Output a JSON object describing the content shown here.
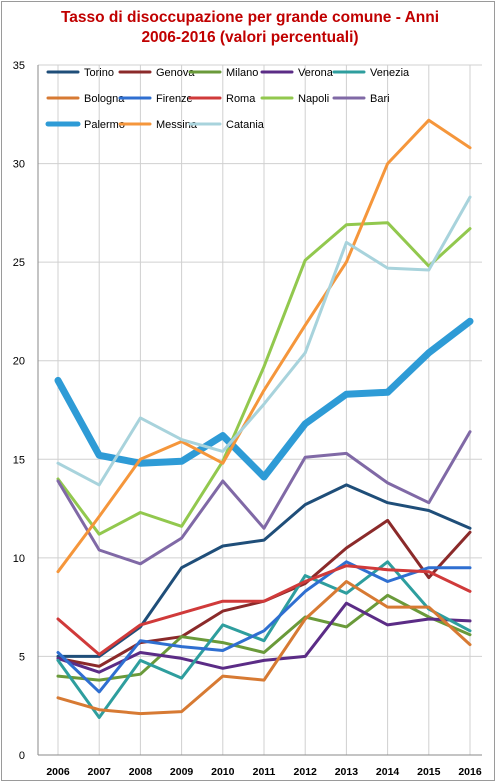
{
  "chart_data": {
    "type": "line",
    "title_line1": "Tasso di disoccupazione per grande comune - Anni",
    "title_line2": "2006-2016 (valori percentuali)",
    "x": [
      "2006",
      "2007",
      "2008",
      "2009",
      "2010",
      "2011",
      "2012",
      "2013",
      "2014",
      "2015",
      "2016"
    ],
    "ylim": [
      0,
      35
    ],
    "yticks": [
      0,
      5,
      10,
      15,
      20,
      25,
      30,
      35
    ],
    "grid": true,
    "legend_position": "top-left",
    "series": [
      {
        "name": "Torino",
        "color": "#1f4e79",
        "width": 3,
        "values": [
          5.0,
          5.0,
          6.5,
          9.5,
          10.6,
          10.9,
          12.7,
          13.7,
          12.8,
          12.4,
          11.5
        ]
      },
      {
        "name": "Genova",
        "color": "#8b2a2a",
        "width": 3,
        "values": [
          4.9,
          4.5,
          5.7,
          6.0,
          7.3,
          7.8,
          8.7,
          10.5,
          11.9,
          9.0,
          11.3
        ]
      },
      {
        "name": "Milano",
        "color": "#6a9a3a",
        "width": 3,
        "values": [
          4.0,
          3.8,
          4.1,
          6.0,
          5.7,
          5.2,
          7.0,
          6.5,
          8.1,
          7.0,
          6.1
        ]
      },
      {
        "name": "Verona",
        "color": "#5b2c86",
        "width": 3,
        "values": [
          4.9,
          4.2,
          5.2,
          4.9,
          4.4,
          4.8,
          5.0,
          7.7,
          6.6,
          6.9,
          6.8
        ]
      },
      {
        "name": "Venezia",
        "color": "#2e9e9e",
        "width": 3,
        "values": [
          4.8,
          1.9,
          4.8,
          3.9,
          6.6,
          5.8,
          9.1,
          8.2,
          9.8,
          7.4,
          6.3
        ]
      },
      {
        "name": "Bologna",
        "color": "#d77a33",
        "width": 3,
        "values": [
          2.9,
          2.3,
          2.1,
          2.2,
          4.0,
          3.8,
          6.9,
          8.8,
          7.5,
          7.5,
          5.6
        ]
      },
      {
        "name": "Firenze",
        "color": "#2f6fd1",
        "width": 3,
        "values": [
          5.2,
          3.2,
          5.8,
          5.5,
          5.3,
          6.3,
          8.3,
          9.8,
          8.8,
          9.5,
          9.5
        ]
      },
      {
        "name": "Roma",
        "color": "#d03a3a",
        "width": 3,
        "values": [
          6.9,
          5.1,
          6.6,
          7.2,
          7.8,
          7.8,
          8.8,
          9.6,
          9.4,
          9.3,
          8.3
        ]
      },
      {
        "name": "Napoli",
        "color": "#92c84e",
        "width": 3,
        "values": [
          14.0,
          11.2,
          12.3,
          11.6,
          14.9,
          19.7,
          25.1,
          26.9,
          27.0,
          24.8,
          26.7
        ]
      },
      {
        "name": "Bari",
        "color": "#8069a6",
        "width": 3,
        "values": [
          13.9,
          10.4,
          9.7,
          11.0,
          13.9,
          11.5,
          15.1,
          15.3,
          13.8,
          12.8,
          16.4
        ]
      },
      {
        "name": "Palermo",
        "color": "#2e9bd6",
        "width": 7,
        "values": [
          19.0,
          15.2,
          14.8,
          14.9,
          16.2,
          14.1,
          16.8,
          18.3,
          18.4,
          20.4,
          22.0
        ]
      },
      {
        "name": "Messina",
        "color": "#f5963b",
        "width": 3,
        "values": [
          9.3,
          12.1,
          15.0,
          15.9,
          14.8,
          18.5,
          21.8,
          25.0,
          30.0,
          32.2,
          30.8
        ]
      },
      {
        "name": "Catania",
        "color": "#a8d3dc",
        "width": 3,
        "values": [
          14.8,
          13.7,
          17.1,
          16.0,
          15.4,
          17.8,
          20.4,
          26.0,
          24.7,
          24.6,
          28.3
        ]
      }
    ]
  }
}
